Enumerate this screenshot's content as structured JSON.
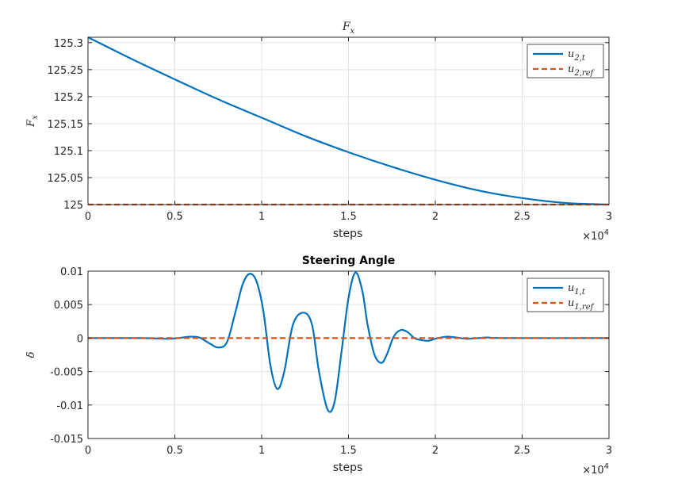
{
  "colors": {
    "series1": "#0072BD",
    "series2": "#D95319",
    "grid": "#e3e3e3",
    "axis": "#262626"
  },
  "chart_data": [
    {
      "id": "fx",
      "type": "line",
      "title": "F",
      "title_sub": "x",
      "title_style": "math",
      "xlabel": "steps",
      "ylabel": "F",
      "ylabel_sub": "x",
      "xlim": [
        0,
        30000
      ],
      "ylim": [
        125,
        125.31
      ],
      "xticks": [
        0,
        5000,
        10000,
        15000,
        20000,
        25000,
        30000
      ],
      "xtick_labels": [
        "0",
        "0.5",
        "1",
        "1.5",
        "2",
        "2.5",
        "3"
      ],
      "yticks": [
        125,
        125.05,
        125.1,
        125.15,
        125.2,
        125.25,
        125.3
      ],
      "ytick_labels": [
        "125",
        "125.05",
        "125.1",
        "125.15",
        "125.2",
        "125.25",
        "125.3"
      ],
      "x_exponent": {
        "base": "×10",
        "power": "4"
      },
      "grid": true,
      "legend_position": "top-right",
      "series": [
        {
          "name": "u",
          "name_sub": "2,t",
          "style": "solid",
          "x": [
            0,
            2500,
            5000,
            7500,
            10000,
            12500,
            15000,
            17500,
            20000,
            22500,
            25000,
            27500,
            30000
          ],
          "y": [
            125.31,
            125.27,
            125.232,
            125.195,
            125.161,
            125.127,
            125.097,
            125.07,
            125.046,
            125.026,
            125.012,
            125.003,
            125.0
          ]
        },
        {
          "name": "u",
          "name_sub": "2,ref",
          "style": "dashed",
          "x": [
            0,
            30000
          ],
          "y": [
            125.0,
            125.0
          ]
        }
      ]
    },
    {
      "id": "delta",
      "type": "line",
      "title": "Steering Angle",
      "title_sub": "",
      "title_style": "bold",
      "xlabel": "steps",
      "ylabel": "δ",
      "ylabel_sub": "",
      "xlim": [
        0,
        30000
      ],
      "ylim": [
        -0.015,
        0.01
      ],
      "xticks": [
        0,
        5000,
        10000,
        15000,
        20000,
        25000,
        30000
      ],
      "xtick_labels": [
        "0",
        "0.5",
        "1",
        "1.5",
        "2",
        "2.5",
        "3"
      ],
      "yticks": [
        -0.015,
        -0.01,
        -0.005,
        0,
        0.005,
        0.01
      ],
      "ytick_labels": [
        "-0.015",
        "-0.01",
        "-0.005",
        "0",
        "0.005",
        "0.01"
      ],
      "x_exponent": {
        "base": "×10",
        "power": "4"
      },
      "grid": true,
      "legend_position": "top-right",
      "series": [
        {
          "name": "u",
          "name_sub": "1,t",
          "style": "solid",
          "x": [
            0,
            3000,
            4500,
            5200,
            5800,
            6400,
            7000,
            7500,
            8000,
            8500,
            8900,
            9300,
            9700,
            10100,
            10500,
            10900,
            11300,
            11800,
            12400,
            12900,
            13300,
            13800,
            14200,
            14600,
            15000,
            15400,
            15800,
            16100,
            16500,
            16900,
            17200,
            17600,
            18000,
            18400,
            18800,
            19200,
            19600,
            20000,
            20600,
            21200,
            21800,
            22500,
            23000,
            24000,
            30000
          ],
          "y": [
            0,
            0,
            -0.0001,
            0,
            0.0002,
            0.0001,
            -0.0008,
            -0.0014,
            -0.0006,
            0.004,
            0.008,
            0.0096,
            0.0085,
            0.004,
            -0.004,
            -0.0076,
            -0.005,
            0.002,
            0.0038,
            0.002,
            -0.005,
            -0.0107,
            -0.0095,
            -0.002,
            0.006,
            0.0098,
            0.007,
            0.002,
            -0.0025,
            -0.0037,
            -0.0025,
            0.0002,
            0.0012,
            0.0009,
            0.0,
            -0.0003,
            -0.0004,
            -0.0001,
            0.0002,
            0.0001,
            -0.0001,
            0.0,
            0.0001,
            0.0,
            0.0
          ]
        },
        {
          "name": "u",
          "name_sub": "1,ref",
          "style": "dashed",
          "x": [
            0,
            30000
          ],
          "y": [
            0,
            0
          ]
        }
      ]
    }
  ]
}
